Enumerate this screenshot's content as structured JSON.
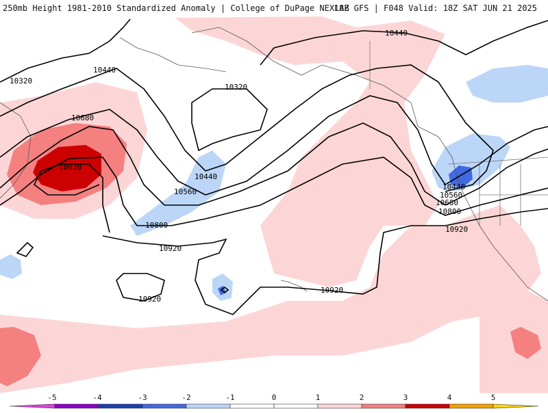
{
  "header": {
    "title_left": "250mb Height 1981-2010 Standardized Anomaly | College of DuPage NEXLAB",
    "title_right": "18Z GFS | F048 Valid: 18Z SAT JUN 21 2025"
  },
  "colorbar": {
    "ticks": [
      "-5",
      "-4",
      "-3",
      "-2",
      "-1",
      "0",
      "1",
      "2",
      "3",
      "4",
      "5"
    ],
    "colors": {
      "n5": "#e040e0",
      "n4": "#8b00c8",
      "n3": "#1a3fb0",
      "n2": "#4169e1",
      "n1": "#bcd6f8",
      "zero": "#ffffff",
      "p1": "#fcd6d6",
      "p2": "#f48080",
      "p3": "#cc0000",
      "p4": "#f4a000",
      "p5": "#ffd700"
    }
  },
  "contour_labels": [
    {
      "id": "c10320-a",
      "text": "10320"
    },
    {
      "id": "c10440-a",
      "text": "10440"
    },
    {
      "id": "c10320-b",
      "text": "10320"
    },
    {
      "id": "c10440-b",
      "text": "10440"
    },
    {
      "id": "c10680-a",
      "text": "10680"
    },
    {
      "id": "c10920-a",
      "text": "10920"
    },
    {
      "id": "c10440-c",
      "text": "10440"
    },
    {
      "id": "c10560-a",
      "text": "10560"
    },
    {
      "id": "c10800-a",
      "text": "10800"
    },
    {
      "id": "c10920-b",
      "text": "10920"
    },
    {
      "id": "c10920-c",
      "text": "10920"
    },
    {
      "id": "c10920-d",
      "text": "10920"
    },
    {
      "id": "c10440-d",
      "text": "10440"
    },
    {
      "id": "c10560-b",
      "text": "10560"
    },
    {
      "id": "c10680-b",
      "text": "10680"
    },
    {
      "id": "c10800-b",
      "text": "10800"
    },
    {
      "id": "c10920-e",
      "text": "10920"
    }
  ]
}
